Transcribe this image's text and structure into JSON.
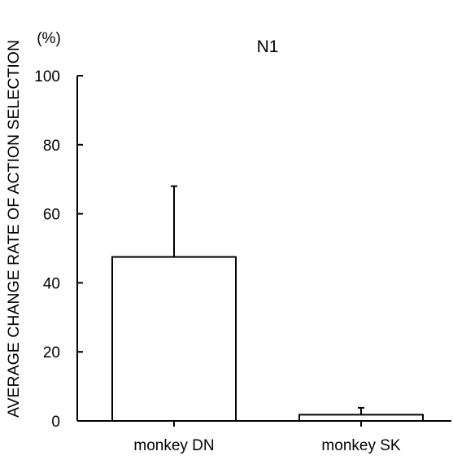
{
  "chart_data": {
    "type": "bar",
    "title": "N1",
    "ylabel": "AVERAGE CHANGE RATE OF ACTION SELECTION",
    "y_unit": "(%)",
    "xlabel": "",
    "categories": [
      "monkey DN",
      "monkey SK"
    ],
    "values": [
      47.5,
      1.8
    ],
    "error_bars": [
      20.5,
      2.0
    ],
    "ylim": [
      0,
      100
    ],
    "yticks": [
      0,
      20,
      40,
      60,
      80,
      100
    ],
    "grid": false,
    "legend": "none",
    "colors": {
      "bar_fill": "#ffffff",
      "bar_stroke": "#000000",
      "axis": "#000000"
    }
  }
}
